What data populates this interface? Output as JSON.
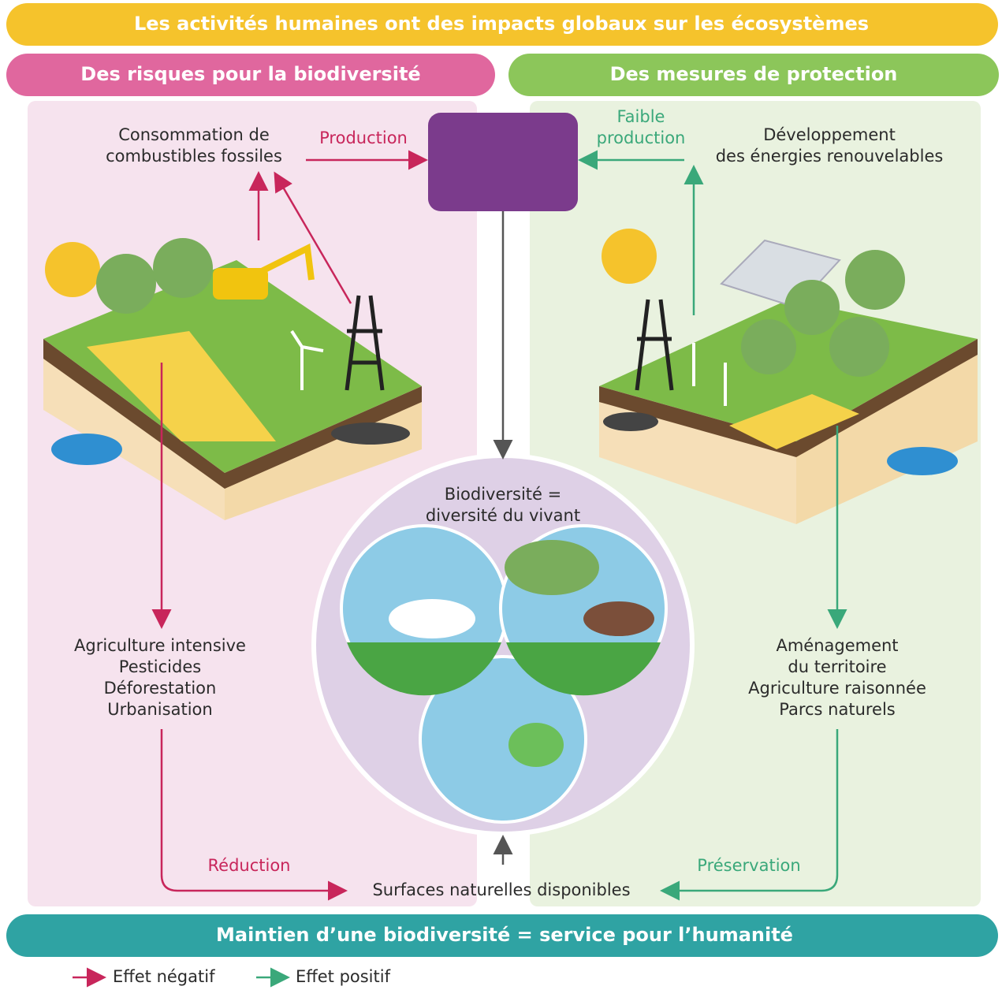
{
  "header": {
    "title": "Les activités humaines ont des impacts globaux sur les écosystèmes"
  },
  "left": {
    "title": "Des risques pour la biodiversité",
    "source": [
      "Consommation de",
      "combustibles fossiles"
    ],
    "arrow_label": "Production",
    "impacts": [
      "Agriculture intensive",
      "Pesticides",
      "Déforestation",
      "Urbanisation"
    ],
    "bottom_label": "Réduction"
  },
  "right": {
    "title": "Des mesures de protection",
    "source": [
      "Développement",
      "des énergies renouvelables"
    ],
    "arrow_label": [
      "Faible",
      "production"
    ],
    "measures": [
      "Aménagement",
      "du territoire",
      "Agriculture raisonnée",
      "Parcs naturels"
    ],
    "bottom_label": "Préservation"
  },
  "center": {
    "biodiversity": [
      "Biodiversité =",
      "diversité du vivant"
    ],
    "surfaces": "Surfaces naturelles disponibles"
  },
  "footer": {
    "title": "Maintien d’une biodiversité = service pour l’humanité"
  },
  "legend": {
    "negative": "Effet négatif",
    "positive": "Effet positif"
  }
}
